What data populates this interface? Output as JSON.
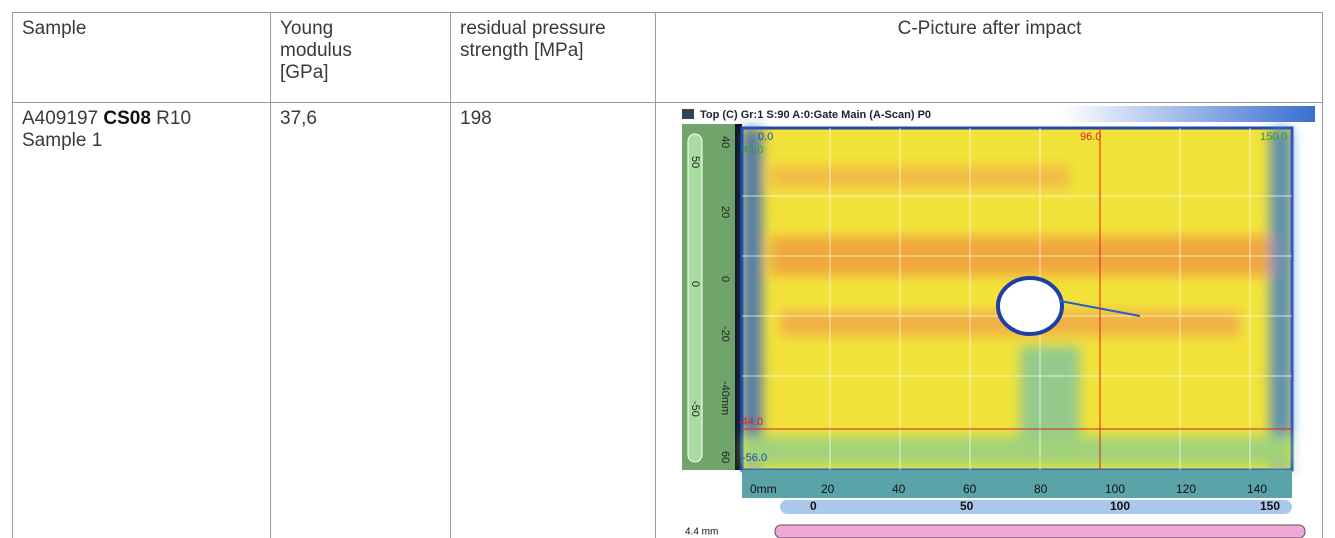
{
  "table": {
    "headers": [
      "Sample",
      "Young modulus [GPa]",
      "residual pressure strength [MPa]",
      "C-Picture after impact"
    ],
    "rows": [
      [
        {
          "id_prefix": "A409197",
          "id_bold": "CS08",
          "id_suffix": "R10",
          "sample": "Sample 1"
        },
        "37,6",
        "198"
      ]
    ]
  },
  "scan": {
    "title": "Top (C) Gr:1 S:90 A:0:Gate Main (A-Scan) P0",
    "top_labels": [
      "0.0",
      "96.0",
      "150.0"
    ],
    "left_labels": [
      "44.0",
      "-44.0",
      "-56.0"
    ],
    "slider_labels": [
      "50",
      "0",
      "-50"
    ],
    "ruler_labels": [
      "40",
      "20",
      "0",
      "-20",
      "-40mm",
      "60"
    ],
    "bottom_labels": [
      "0mm",
      "20",
      "40",
      "60",
      "80",
      "100",
      "120",
      "140"
    ],
    "scale_labels": [
      "0",
      "50",
      "100",
      "150"
    ],
    "thickness": "4.4 mm"
  }
}
